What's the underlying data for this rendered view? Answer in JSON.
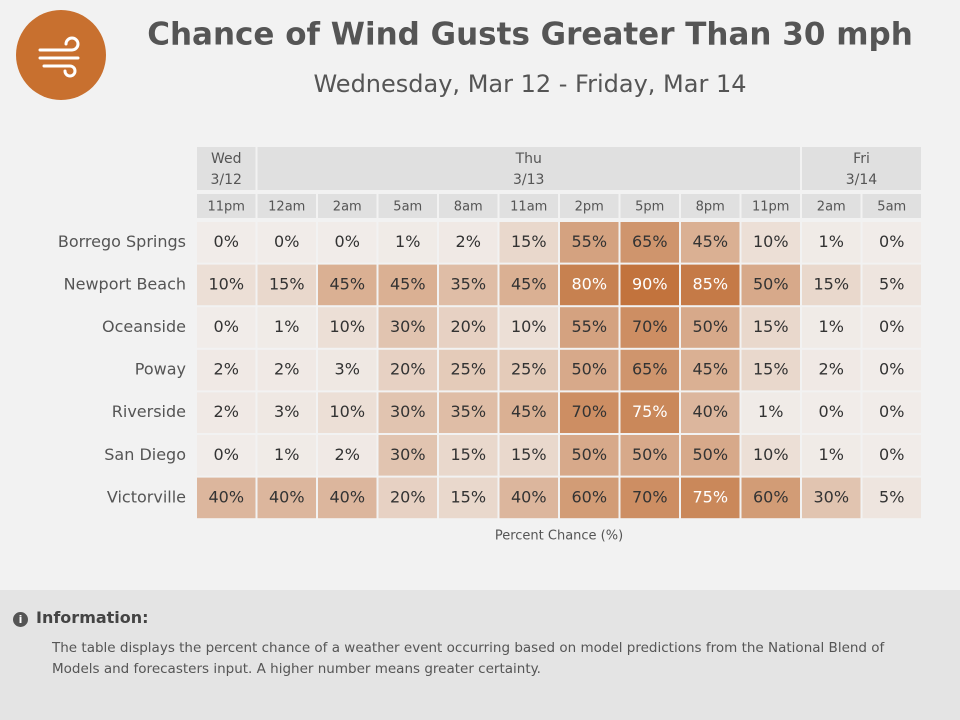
{
  "chart_data": {
    "type": "heatmap",
    "title": "Chance of Wind Gusts Greater Than 30 mph",
    "subtitle": "Wednesday, Mar 12 - Friday, Mar 14",
    "days": [
      {
        "name": "Wed",
        "date": "3/12",
        "times": [
          "11pm"
        ]
      },
      {
        "name": "Thu",
        "date": "3/13",
        "times": [
          "12am",
          "2am",
          "5am",
          "8am",
          "11am",
          "2pm",
          "5pm",
          "8pm",
          "11pm"
        ]
      },
      {
        "name": "Fri",
        "date": "3/14",
        "times": [
          "2am",
          "5am"
        ]
      }
    ],
    "categories": [
      "Borrego Springs",
      "Newport Beach",
      "Oceanside",
      "Poway",
      "Riverside",
      "San Diego",
      "Victorville"
    ],
    "values": [
      [
        0,
        0,
        0,
        1,
        2,
        15,
        55,
        65,
        45,
        10,
        1,
        0
      ],
      [
        10,
        15,
        45,
        45,
        35,
        45,
        80,
        90,
        85,
        50,
        15,
        5
      ],
      [
        0,
        1,
        10,
        30,
        20,
        10,
        55,
        70,
        50,
        15,
        1,
        0
      ],
      [
        2,
        2,
        3,
        20,
        25,
        25,
        50,
        65,
        45,
        15,
        2,
        0
      ],
      [
        2,
        3,
        10,
        30,
        35,
        45,
        70,
        75,
        40,
        1,
        0,
        0
      ],
      [
        0,
        1,
        2,
        30,
        15,
        15,
        50,
        50,
        50,
        10,
        1,
        0
      ],
      [
        40,
        40,
        40,
        20,
        15,
        40,
        60,
        70,
        75,
        60,
        30,
        5
      ]
    ],
    "value_labels": [
      [
        "0%",
        "0%",
        "0%",
        "1%",
        "2%",
        "15%",
        "55%",
        "65%",
        "45%",
        "10%",
        "1%",
        "0%"
      ],
      [
        "10%",
        "15%",
        "45%",
        "45%",
        "35%",
        "45%",
        "80%",
        "90%",
        "85%",
        "50%",
        "15%",
        "5%"
      ],
      [
        "0%",
        "1%",
        "10%",
        "30%",
        "20%",
        "10%",
        "55%",
        "70%",
        "50%",
        "15%",
        "1%",
        "0%"
      ],
      [
        "2%",
        "2%",
        "3%",
        "20%",
        "25%",
        "25%",
        "50%",
        "65%",
        "45%",
        "15%",
        "2%",
        "0%"
      ],
      [
        "2%",
        "3%",
        "10%",
        "30%",
        "35%",
        "45%",
        "70%",
        "75%",
        "40%",
        "1%",
        "0%",
        "0%"
      ],
      [
        "0%",
        "1%",
        "2%",
        "30%",
        "15%",
        "15%",
        "50%",
        "50%",
        "50%",
        "10%",
        "1%",
        "0%"
      ],
      [
        "40%",
        "40%",
        "40%",
        "20%",
        "15%",
        "40%",
        "60%",
        "70%",
        "75%",
        "60%",
        "30%",
        "5%"
      ]
    ],
    "clim": [
      0,
      100
    ],
    "color_low": "#f1ece9",
    "color_high": "#bd662a",
    "x_label": "Percent Chance (%)"
  },
  "info": {
    "title": "Information:",
    "text": "The table displays the percent chance of a weather event occurring based on model predictions from the National Blend of Models and forecasters input. A higher number means greater certainty."
  }
}
